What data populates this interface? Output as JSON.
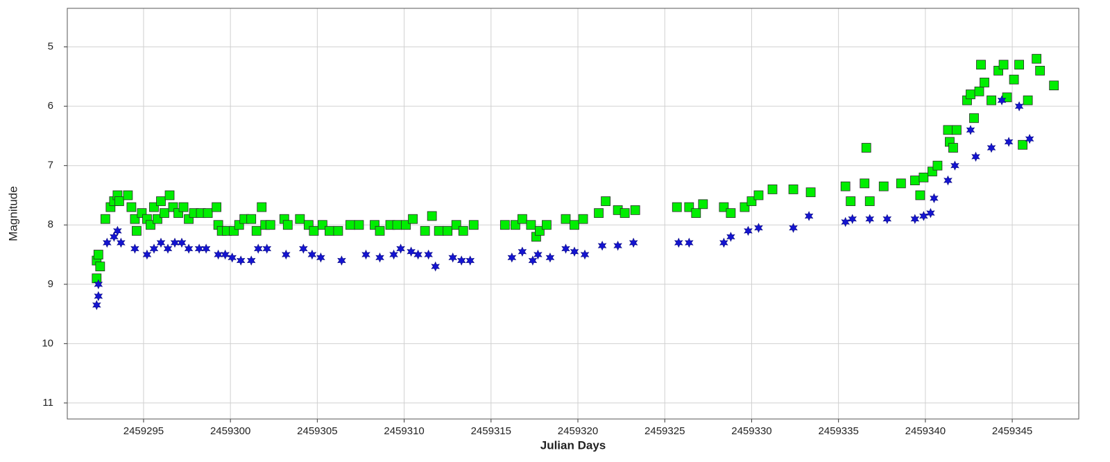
{
  "chart_data": {
    "type": "scatter",
    "x_label": "Julian Days",
    "y_label": "Magnitude",
    "xlim": [
      2459290.61,
      2459348.83
    ],
    "ylim": [
      11.27,
      4.35
    ],
    "y_inverted": true,
    "xticks": [
      2459295,
      2459300,
      2459305,
      2459310,
      2459315,
      2459320,
      2459325,
      2459330,
      2459335,
      2459340,
      2459345
    ],
    "yticks": [
      5,
      6,
      7,
      8,
      9,
      10,
      11
    ],
    "grid": true,
    "series": [
      {
        "color": "#00ee00",
        "marker": "square",
        "x": [
          2459292.3,
          2459292.3,
          2459292.4,
          2459292.5,
          2459292.8,
          2459293.1,
          2459293.3,
          2459293.5,
          2459293.6,
          2459294.1,
          2459294.3,
          2459294.5,
          2459294.6,
          2459294.9,
          2459295.2,
          2459295.4,
          2459295.6,
          2459295.8,
          2459296.0,
          2459296.2,
          2459296.5,
          2459296.7,
          2459297.0,
          2459297.3,
          2459297.6,
          2459297.9,
          2459298.3,
          2459298.7,
          2459299.2,
          2459299.3,
          2459299.5,
          2459299.8,
          2459300.2,
          2459300.5,
          2459300.8,
          2459301.2,
          2459301.5,
          2459301.8,
          2459302.0,
          2459302.3,
          2459303.1,
          2459303.3,
          2459304.0,
          2459304.5,
          2459304.8,
          2459305.3,
          2459305.7,
          2459306.2,
          2459306.9,
          2459307.4,
          2459308.3,
          2459308.6,
          2459309.2,
          2459309.6,
          2459310.1,
          2459310.5,
          2459311.2,
          2459311.6,
          2459312.0,
          2459312.5,
          2459313.0,
          2459313.4,
          2459314.0,
          2459315.8,
          2459316.4,
          2459316.8,
          2459317.3,
          2459317.6,
          2459317.8,
          2459318.2,
          2459319.3,
          2459319.8,
          2459320.3,
          2459321.2,
          2459321.6,
          2459322.3,
          2459322.7,
          2459323.3,
          2459325.7,
          2459326.4,
          2459326.8,
          2459327.2,
          2459328.4,
          2459328.8,
          2459329.6,
          2459330.0,
          2459330.4,
          2459331.2,
          2459332.4,
          2459333.4,
          2459335.4,
          2459335.7,
          2459336.5,
          2459336.6,
          2459336.8,
          2459337.6,
          2459338.6,
          2459339.4,
          2459339.7,
          2459339.9,
          2459340.4,
          2459340.7,
          2459341.3,
          2459341.4,
          2459341.6,
          2459341.8,
          2459342.4,
          2459342.6,
          2459342.8,
          2459343.1,
          2459343.2,
          2459343.4,
          2459343.8,
          2459344.2,
          2459344.5,
          2459344.7,
          2459345.1,
          2459345.4,
          2459345.6,
          2459345.9,
          2459346.4,
          2459346.6,
          2459347.4
        ],
        "values": [
          8.6,
          8.9,
          8.5,
          8.7,
          7.9,
          7.7,
          7.6,
          7.5,
          7.6,
          7.5,
          7.7,
          7.9,
          8.1,
          7.8,
          7.9,
          8.0,
          7.7,
          7.9,
          7.6,
          7.8,
          7.5,
          7.7,
          7.8,
          7.7,
          7.9,
          7.8,
          7.8,
          7.8,
          7.7,
          8.0,
          8.1,
          8.1,
          8.1,
          8.0,
          7.9,
          7.9,
          8.1,
          7.7,
          8.0,
          8.0,
          7.9,
          8.0,
          7.9,
          8.0,
          8.1,
          8.0,
          8.1,
          8.1,
          8.0,
          8.0,
          8.0,
          8.1,
          8.0,
          8.0,
          8.0,
          7.9,
          8.1,
          7.85,
          8.1,
          8.1,
          8.0,
          8.1,
          8.0,
          8.0,
          8.0,
          7.9,
          8.0,
          8.2,
          8.1,
          8.0,
          7.9,
          8.0,
          7.9,
          7.8,
          7.6,
          7.75,
          7.8,
          7.75,
          7.7,
          7.7,
          7.8,
          7.65,
          7.7,
          7.8,
          7.7,
          7.6,
          7.5,
          7.4,
          7.4,
          7.45,
          7.35,
          7.6,
          7.3,
          6.7,
          7.6,
          7.35,
          7.3,
          7.25,
          7.5,
          7.2,
          7.1,
          7.0,
          6.4,
          6.6,
          6.7,
          6.4,
          5.9,
          5.8,
          6.2,
          5.75,
          5.3,
          5.6,
          5.9,
          5.4,
          5.3,
          5.85,
          5.55,
          5.3,
          6.65,
          5.9,
          5.2,
          5.4,
          5.65
        ]
      },
      {
        "color": "#1414d0",
        "marker": "star",
        "x": [
          2459292.3,
          2459292.4,
          2459292.4,
          2459292.9,
          2459293.3,
          2459293.5,
          2459293.7,
          2459294.5,
          2459295.2,
          2459295.6,
          2459296.0,
          2459296.4,
          2459296.8,
          2459297.2,
          2459297.6,
          2459298.2,
          2459298.6,
          2459299.3,
          2459299.7,
          2459300.1,
          2459300.6,
          2459301.2,
          2459301.6,
          2459302.1,
          2459303.2,
          2459304.2,
          2459304.7,
          2459305.2,
          2459306.4,
          2459307.8,
          2459308.6,
          2459309.4,
          2459309.8,
          2459310.4,
          2459310.8,
          2459311.4,
          2459311.8,
          2459312.8,
          2459313.3,
          2459313.8,
          2459316.2,
          2459316.8,
          2459317.4,
          2459317.7,
          2459318.4,
          2459319.3,
          2459319.8,
          2459320.4,
          2459321.4,
          2459322.3,
          2459323.2,
          2459325.8,
          2459326.4,
          2459328.4,
          2459328.8,
          2459329.8,
          2459330.4,
          2459332.4,
          2459333.3,
          2459335.4,
          2459335.8,
          2459336.8,
          2459337.8,
          2459339.4,
          2459339.9,
          2459340.3,
          2459340.5,
          2459341.3,
          2459341.7,
          2459342.6,
          2459342.9,
          2459343.8,
          2459344.4,
          2459344.8,
          2459345.4,
          2459346.0
        ],
        "values": [
          9.35,
          9.0,
          9.2,
          8.3,
          8.2,
          8.1,
          8.3,
          8.4,
          8.5,
          8.4,
          8.3,
          8.4,
          8.3,
          8.3,
          8.4,
          8.4,
          8.4,
          8.5,
          8.5,
          8.55,
          8.6,
          8.6,
          8.4,
          8.4,
          8.5,
          8.4,
          8.5,
          8.55,
          8.6,
          8.5,
          8.55,
          8.5,
          8.4,
          8.45,
          8.5,
          8.5,
          8.7,
          8.55,
          8.6,
          8.6,
          8.55,
          8.45,
          8.6,
          8.5,
          8.55,
          8.4,
          8.45,
          8.5,
          8.35,
          8.35,
          8.3,
          8.3,
          8.3,
          8.3,
          8.2,
          8.1,
          8.05,
          8.05,
          7.85,
          7.95,
          7.9,
          7.9,
          7.9,
          7.9,
          7.85,
          7.8,
          7.55,
          7.25,
          7.0,
          6.4,
          6.85,
          6.7,
          5.9,
          6.6,
          6.0,
          6.55
        ]
      }
    ]
  }
}
